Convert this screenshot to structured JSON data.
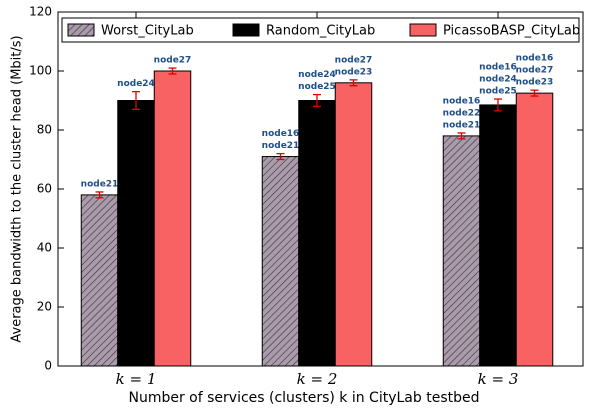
{
  "chart_data": {
    "type": "bar",
    "x_label": "Number of services (clusters) k in CityLab testbed",
    "y_label": "Average bandwidth to the cluster head (Mbit/s)",
    "categories": [
      "k = 1",
      "k = 2",
      "k = 3"
    ],
    "series": [
      {
        "name": "Worst_CityLab",
        "color": "#a99ba9",
        "hatch": true,
        "values": [
          58,
          71,
          78
        ],
        "errors": [
          1,
          1,
          1
        ],
        "labels": [
          [
            "node21"
          ],
          [
            "node16",
            "node21"
          ],
          [
            "node16",
            "node22",
            "node21"
          ]
        ]
      },
      {
        "name": "Random_CityLab",
        "color": "#000000",
        "values": [
          90,
          90,
          88.5
        ],
        "errors": [
          3,
          2,
          2
        ],
        "labels": [
          [
            "node24"
          ],
          [
            "node24",
            "node25"
          ],
          [
            "node16",
            "node24",
            "node25"
          ]
        ]
      },
      {
        "name": "PicassoBASP_CityLab",
        "color": "#f86262",
        "values": [
          100,
          96,
          92.5
        ],
        "errors": [
          1,
          1,
          1
        ],
        "labels": [
          [
            "node27"
          ],
          [
            "node27",
            "node23"
          ],
          [
            "node16",
            "node27",
            "node23"
          ]
        ]
      }
    ],
    "error_color": "#e00000",
    "ylim": [
      0,
      120
    ],
    "yticks": [
      0,
      20,
      40,
      60,
      80,
      100,
      120
    ],
    "legend": "top"
  }
}
